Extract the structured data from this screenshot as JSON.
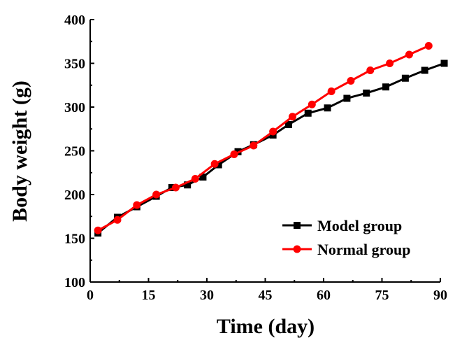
{
  "chart_data": {
    "type": "line",
    "title": "",
    "xlabel": "Time (day)",
    "ylabel": "Body weight (g)",
    "xlim": [
      0,
      90
    ],
    "ylim": [
      100,
      400
    ],
    "xticks": [
      0,
      15,
      30,
      45,
      60,
      75,
      90
    ],
    "yticks": [
      100,
      150,
      200,
      250,
      300,
      350,
      400
    ],
    "grid": false,
    "legend_position": "bottom-right",
    "series": [
      {
        "name": "Model group",
        "color": "#000000",
        "marker": "square",
        "x": [
          2,
          7,
          12,
          17,
          21,
          25,
          29,
          33,
          38,
          42,
          47,
          51,
          56,
          61,
          66,
          71,
          76,
          81,
          86,
          91
        ],
        "y": [
          156,
          174,
          186,
          198,
          208,
          211,
          220,
          234,
          249,
          257,
          268,
          280,
          293,
          299,
          310,
          316,
          323,
          333,
          342,
          350
        ]
      },
      {
        "name": "Normal group",
        "color": "#ff0000",
        "marker": "circle",
        "x": [
          2,
          7,
          12,
          17,
          22,
          27,
          32,
          37,
          42,
          47,
          52,
          57,
          62,
          67,
          72,
          77,
          82,
          87
        ],
        "y": [
          159,
          171,
          188,
          200,
          208,
          218,
          235,
          246,
          256,
          272,
          289,
          303,
          318,
          330,
          342,
          350,
          360,
          370
        ]
      }
    ]
  }
}
